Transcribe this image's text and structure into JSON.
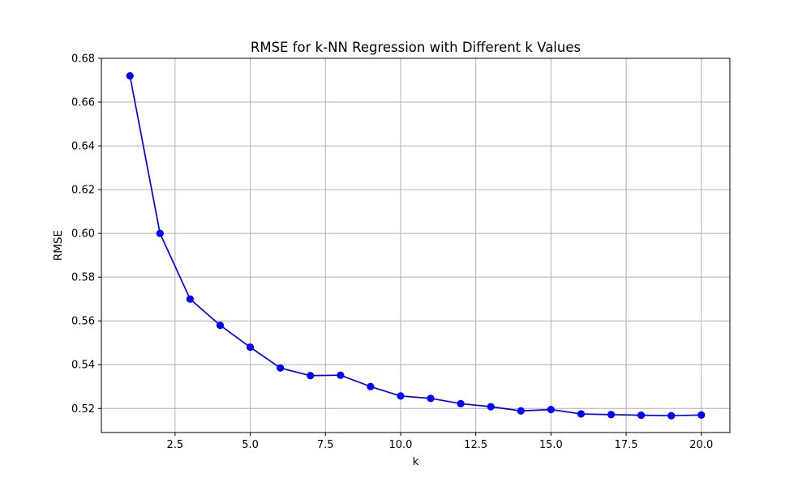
{
  "chart_data": {
    "type": "line",
    "title": "RMSE for k-NN Regression with Different k Values",
    "xlabel": "k",
    "ylabel": "RMSE",
    "xlim": [
      0.05,
      20.95
    ],
    "ylim": [
      0.509,
      0.68
    ],
    "xticks": [
      2.5,
      5.0,
      7.5,
      10.0,
      12.5,
      15.0,
      17.5,
      20.0
    ],
    "xtick_labels": [
      "2.5",
      "5.0",
      "7.5",
      "10.0",
      "12.5",
      "15.0",
      "17.5",
      "20.0"
    ],
    "yticks": [
      0.52,
      0.54,
      0.56,
      0.58,
      0.6,
      0.62,
      0.64,
      0.66,
      0.68
    ],
    "ytick_labels": [
      "0.52",
      "0.54",
      "0.56",
      "0.58",
      "0.60",
      "0.62",
      "0.64",
      "0.66",
      "0.68"
    ],
    "grid": true,
    "series": [
      {
        "color": "#0000ff",
        "marker": "circle",
        "x": [
          1,
          2,
          3,
          4,
          5,
          6,
          7,
          8,
          9,
          10,
          11,
          12,
          13,
          14,
          15,
          16,
          17,
          18,
          19,
          20
        ],
        "y": [
          0.672,
          0.6,
          0.57,
          0.558,
          0.548,
          0.5385,
          0.535,
          0.5352,
          0.53,
          0.5257,
          0.5246,
          0.5222,
          0.5208,
          0.5189,
          0.5195,
          0.5175,
          0.5172,
          0.5169,
          0.5167,
          0.517
        ]
      }
    ]
  }
}
